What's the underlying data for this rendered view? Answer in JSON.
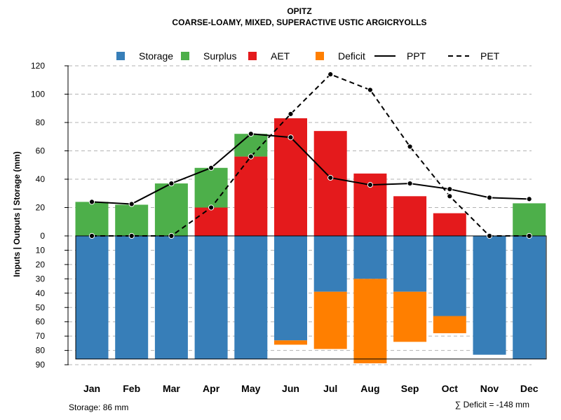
{
  "chart_data": {
    "type": "bar",
    "title": "OPITZ",
    "subtitle": "COARSE-LOAMY, MIXED, SUPERACTIVE USTIC ARGICRYOLLS",
    "ylabel": "Inputs | Outputs | Storage    (mm)",
    "categories": [
      "Jan",
      "Feb",
      "Mar",
      "Apr",
      "May",
      "Jun",
      "Jul",
      "Aug",
      "Sep",
      "Oct",
      "Nov",
      "Dec"
    ],
    "upper_axis": {
      "ylim": [
        0,
        120
      ],
      "ticks": [
        "0",
        "20",
        "40",
        "60",
        "80",
        "100",
        "120"
      ]
    },
    "lower_axis": {
      "ylim": [
        0,
        90
      ],
      "ticks": [
        "0",
        "10",
        "20",
        "30",
        "40",
        "50",
        "60",
        "70",
        "80",
        "90"
      ]
    },
    "legend": [
      {
        "key": "storage",
        "label": "Storage",
        "kind": "box",
        "color": "#377EB8"
      },
      {
        "key": "surplus",
        "label": "Surplus",
        "kind": "box",
        "color": "#4DAF4A"
      },
      {
        "key": "aet",
        "label": "AET",
        "kind": "box",
        "color": "#E41A1C"
      },
      {
        "key": "deficit",
        "label": "Deficit",
        "kind": "box",
        "color": "#FF7F00"
      },
      {
        "key": "ppt",
        "label": "PPT",
        "kind": "solid-line",
        "color": "#000000"
      },
      {
        "key": "pet",
        "label": "PET",
        "kind": "dashed-line",
        "color": "#000000"
      }
    ],
    "series": [
      {
        "name": "AET",
        "values": [
          0,
          0,
          0,
          20,
          56,
          83,
          74,
          44,
          28,
          16,
          0,
          0
        ]
      },
      {
        "name": "Surplus",
        "values": [
          24,
          22,
          37,
          28,
          16,
          0,
          0,
          0,
          0,
          0,
          0,
          23
        ]
      },
      {
        "name": "Storage",
        "values": [
          86,
          86,
          86,
          86,
          86,
          73,
          39,
          30,
          39,
          56,
          83,
          86
        ]
      },
      {
        "name": "Deficit",
        "values": [
          0,
          0,
          0,
          0,
          0,
          3,
          40,
          59,
          35,
          12,
          0,
          0
        ]
      },
      {
        "name": "PPT",
        "values": [
          24,
          22.5,
          37,
          48,
          72,
          69.5,
          41,
          36,
          37,
          33,
          27,
          26
        ]
      },
      {
        "name": "PET",
        "values": [
          0,
          0,
          0,
          20,
          56,
          86,
          114,
          103,
          63,
          28,
          0,
          0
        ]
      }
    ],
    "storage_capacity": 86,
    "footer_left": "Storage: 86 mm",
    "footer_right": "∑ Deficit = -148 mm",
    "grid": true
  }
}
